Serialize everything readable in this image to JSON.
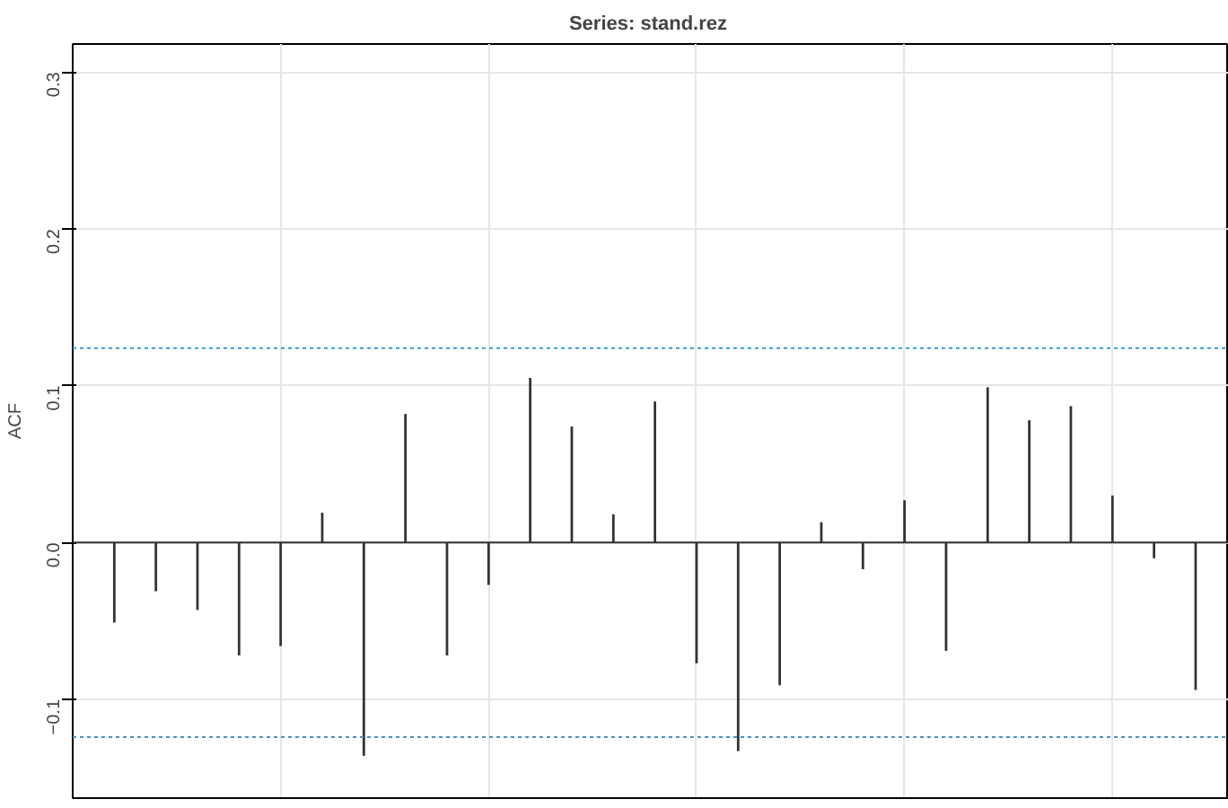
{
  "chart_data": {
    "type": "bar",
    "title": "Series:  stand.rez",
    "ylabel": "ACF",
    "color": "#333333",
    "categories": [
      null,
      null,
      null,
      null,
      null,
      null,
      null,
      null,
      null,
      null,
      null,
      null,
      null,
      null,
      null,
      null,
      null,
      null,
      null,
      null,
      null,
      null,
      null,
      null,
      null,
      null,
      null
    ],
    "values": [
      -0.051,
      -0.031,
      -0.043,
      -0.072,
      -0.066,
      0.019,
      -0.136,
      0.082,
      -0.072,
      -0.027,
      0.105,
      0.074,
      0.018,
      0.09,
      -0.077,
      -0.133,
      -0.091,
      0.013,
      -0.017,
      0.027,
      -0.069,
      0.099,
      0.078,
      0.087,
      0.03,
      -0.01,
      -0.094
    ],
    "ylim": [
      -0.163,
      0.318
    ],
    "yticks": [
      {
        "value": -0.1,
        "label": "−0.1"
      },
      {
        "value": 0,
        "label": "0.0"
      },
      {
        "value": 0.1,
        "label": "0.1"
      },
      {
        "value": 0.2,
        "label": "0.2"
      },
      {
        "value": 0.3,
        "label": "0.3"
      }
    ],
    "tick_labels": "y",
    "grid": true,
    "ref_lines": [
      {
        "axis": "y",
        "value": 0.124,
        "color": "#2f9be0",
        "line_style": "dashed"
      },
      {
        "axis": "y",
        "value": -0.124,
        "color": "#4a90c8",
        "line_style": "dashed"
      },
      {
        "axis": "y",
        "value": 0,
        "color": "#333333",
        "line_style": "solid"
      }
    ]
  }
}
